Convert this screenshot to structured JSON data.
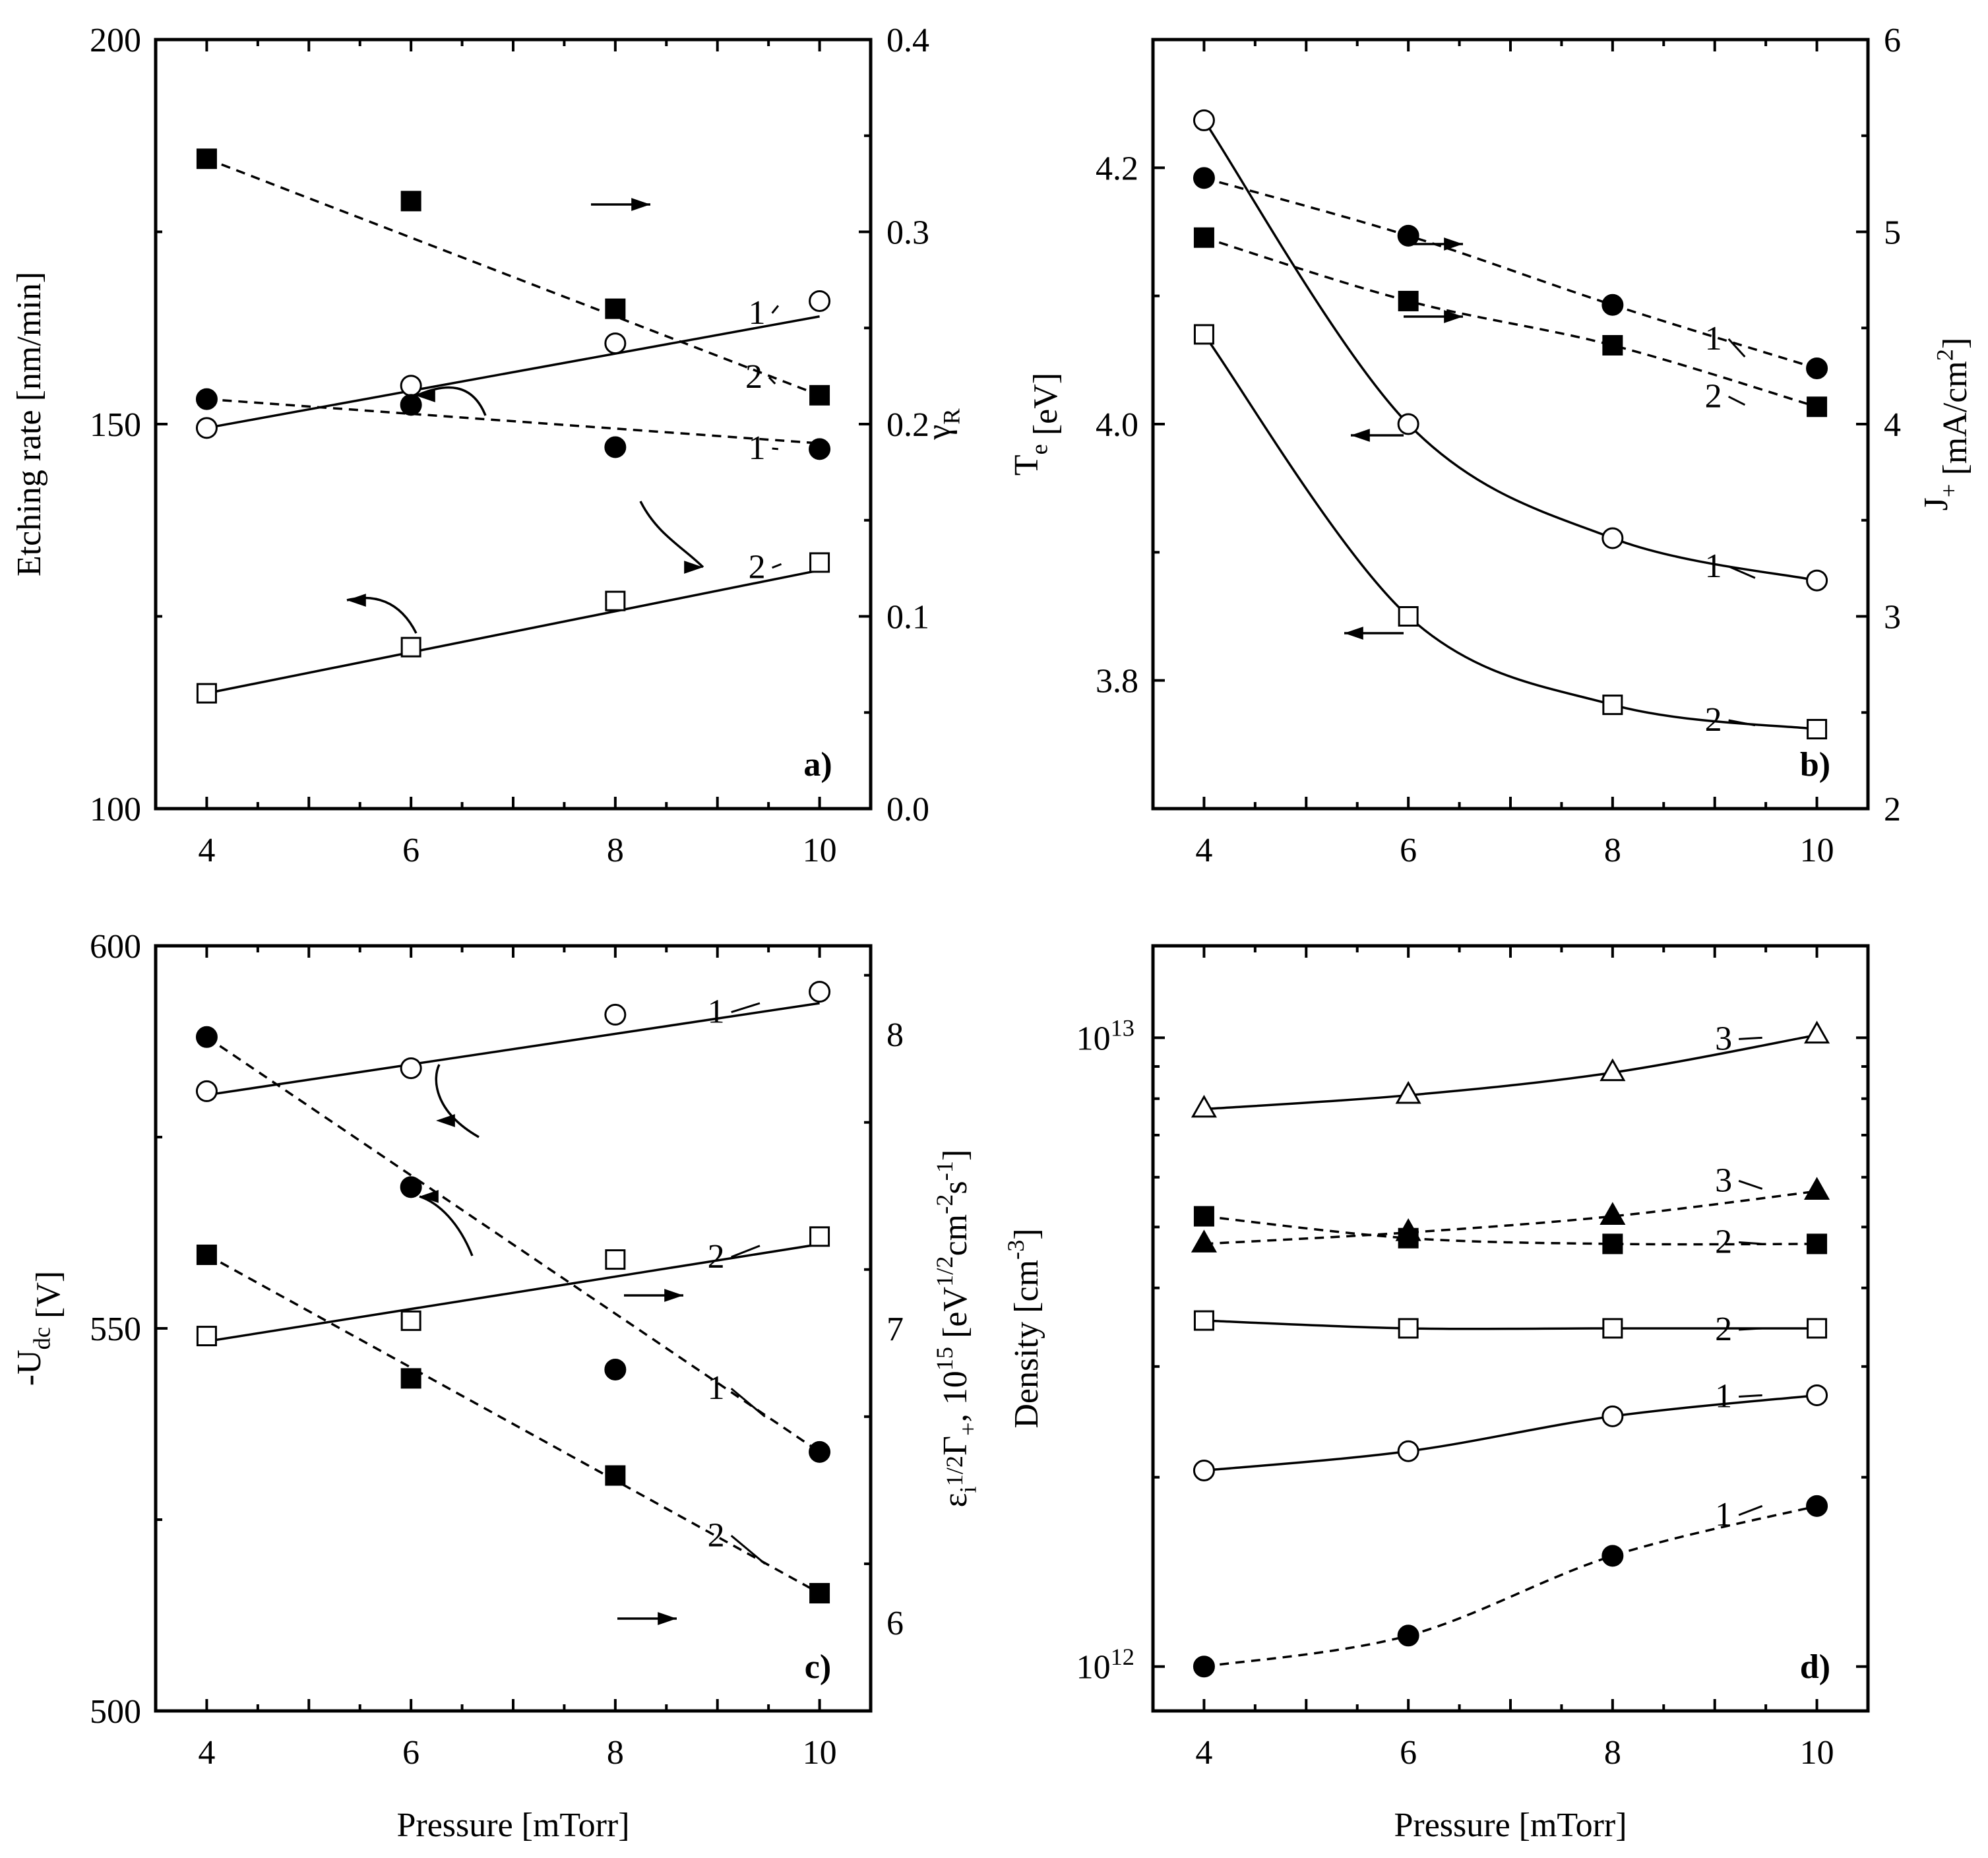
{
  "chart_data": [
    {
      "id": "a",
      "type": "scatter",
      "panel_label": "a)",
      "xlabel": "",
      "ylabel_left": "Etching rate [nm/min]",
      "ylabel_right": "γR",
      "xlim": [
        3.5,
        10.5
      ],
      "ylim_left": [
        100,
        200
      ],
      "ylim_right": [
        0.0,
        0.4
      ],
      "x_ticks": [
        4,
        6,
        8,
        10
      ],
      "x_tick_labels": [
        "4",
        "6",
        "8",
        "10"
      ],
      "left_ticks": [
        100,
        150,
        200
      ],
      "left_tick_labels": [
        "100",
        "150",
        "200"
      ],
      "right_ticks": [
        0.0,
        0.1,
        0.2,
        0.3,
        0.4
      ],
      "right_tick_labels": [
        "0.0",
        "0.1",
        "0.2",
        "0.3",
        "0.4"
      ],
      "series": [
        {
          "name": "open-circle-1",
          "axis": "left",
          "marker": "circle-open",
          "x": [
            4,
            6,
            8,
            10
          ],
          "y": [
            149.5,
            155,
            160.5,
            166
          ],
          "line": "solid",
          "fit": [
            [
              4,
              149.5
            ],
            [
              10,
              164
            ]
          ],
          "label": "1"
        },
        {
          "name": "open-square-2",
          "axis": "left",
          "marker": "square-open",
          "x": [
            4,
            6,
            8,
            10
          ],
          "y": [
            115,
            121,
            127,
            132
          ],
          "line": "solid",
          "fit": [
            [
              4,
              115
            ],
            [
              10,
              131
            ]
          ],
          "label": "2"
        },
        {
          "name": "filled-circle-1",
          "axis": "right",
          "marker": "circle-filled",
          "x": [
            4,
            6,
            8,
            10
          ],
          "y": [
            0.213,
            0.21,
            0.188,
            0.187
          ],
          "line": "dashed",
          "fit": [
            [
              4,
              0.213
            ],
            [
              10,
              0.19
            ]
          ],
          "label": "1"
        },
        {
          "name": "filled-square-2",
          "axis": "right",
          "marker": "square-filled",
          "x": [
            4,
            6,
            8,
            10
          ],
          "y": [
            0.338,
            0.316,
            0.26,
            0.215
          ],
          "line": "dashed",
          "fit": [
            [
              4,
              0.338
            ],
            [
              10,
              0.215
            ]
          ],
          "label": "2"
        }
      ]
    },
    {
      "id": "b",
      "type": "scatter",
      "panel_label": "b)",
      "xlabel": "",
      "ylabel_left": "Te [eV]",
      "ylabel_right": "J+ [mA/cm2]",
      "xlim": [
        3.5,
        10.5
      ],
      "ylim_left": [
        3.7,
        4.3
      ],
      "ylim_right": [
        2,
        6
      ],
      "x_ticks": [
        4,
        6,
        8,
        10
      ],
      "x_tick_labels": [
        "4",
        "6",
        "8",
        "10"
      ],
      "left_ticks": [
        3.8,
        4.0,
        4.2
      ],
      "left_tick_labels": [
        "3.8",
        "4.0",
        "4.2"
      ],
      "right_ticks": [
        2,
        3,
        4,
        5,
        6
      ],
      "right_tick_labels": [
        "2",
        "3",
        "4",
        "5",
        "6"
      ],
      "series": [
        {
          "name": "open-circle-1",
          "axis": "left",
          "marker": "circle-open",
          "x": [
            4,
            6,
            8,
            10
          ],
          "y": [
            4.237,
            4.0,
            3.911,
            3.878
          ],
          "line": "solid-curve",
          "label": "1"
        },
        {
          "name": "open-square-2",
          "axis": "left",
          "marker": "square-open",
          "x": [
            4,
            6,
            8,
            10
          ],
          "y": [
            4.07,
            3.85,
            3.781,
            3.762
          ],
          "line": "solid-curve",
          "label": "2"
        },
        {
          "name": "filled-circle-1",
          "axis": "right",
          "marker": "circle-filled",
          "x": [
            4,
            6,
            8,
            10
          ],
          "y": [
            5.28,
            4.98,
            4.62,
            4.29
          ],
          "line": "dashed",
          "label": "1"
        },
        {
          "name": "filled-square-2",
          "axis": "right",
          "marker": "square-filled",
          "x": [
            4,
            6,
            8,
            10
          ],
          "y": [
            4.97,
            4.64,
            4.41,
            4.09
          ],
          "line": "dashed",
          "label": "2"
        }
      ]
    },
    {
      "id": "c",
      "type": "scatter",
      "panel_label": "c)",
      "xlabel": "Pressure [mTorr]",
      "ylabel_left": "-Udc [V]",
      "ylabel_right": "εi1/2Γ+, 1015 [eV1/2cm-2s-1]",
      "xlim": [
        3.5,
        10.5
      ],
      "ylim_left": [
        500,
        600
      ],
      "ylim_right": [
        5.7,
        8.3
      ],
      "x_ticks": [
        4,
        6,
        8,
        10
      ],
      "x_tick_labels": [
        "4",
        "6",
        "8",
        "10"
      ],
      "left_ticks": [
        500,
        550,
        600
      ],
      "left_tick_labels": [
        "500",
        "550",
        "600"
      ],
      "right_ticks": [
        6,
        7,
        8
      ],
      "right_tick_labels": [
        "6",
        "7",
        "8"
      ],
      "series": [
        {
          "name": "open-circle-1",
          "axis": "left",
          "marker": "circle-open",
          "x": [
            4,
            6,
            8,
            10
          ],
          "y": [
            581,
            584,
            591,
            594
          ],
          "line": "solid",
          "fit": [
            [
              4,
              580.5
            ],
            [
              10,
              592.5
            ]
          ],
          "label": "1"
        },
        {
          "name": "open-square-2",
          "axis": "left",
          "marker": "square-open",
          "x": [
            4,
            6,
            8,
            10
          ],
          "y": [
            549,
            551,
            559,
            562
          ],
          "line": "solid",
          "fit": [
            [
              4,
              548.3
            ],
            [
              10,
              561
            ]
          ],
          "label": "2"
        },
        {
          "name": "filled-circle-1",
          "axis": "right",
          "marker": "circle-filled",
          "x": [
            4,
            6,
            8,
            10
          ],
          "y": [
            7.99,
            7.48,
            6.86,
            6.58
          ],
          "line": "dashed",
          "fit": [
            [
              4,
              7.99
            ],
            [
              10,
              6.58
            ]
          ],
          "label": "1"
        },
        {
          "name": "filled-square-2",
          "axis": "right",
          "marker": "square-filled",
          "x": [
            4,
            6,
            8,
            10
          ],
          "y": [
            7.25,
            6.83,
            6.5,
            6.1
          ],
          "line": "dashed",
          "fit": [
            [
              4,
              7.25
            ],
            [
              10,
              6.1
            ]
          ],
          "label": "2"
        }
      ]
    },
    {
      "id": "d",
      "type": "scatter",
      "panel_label": "d)",
      "xlabel": "Pressure [mTorr]",
      "ylabel_left": "Density [cm-3]",
      "scale": "log",
      "xlim": [
        3.5,
        10.5
      ],
      "ylim_left": [
        850000000000.0,
        14000000000000.0
      ],
      "x_ticks": [
        4,
        6,
        8,
        10
      ],
      "x_tick_labels": [
        "4",
        "6",
        "8",
        "10"
      ],
      "left_ticks_major": [
        1000000000000.0,
        10000000000000.0
      ],
      "left_tick_labels": [
        "1012",
        "1013"
      ],
      "left_ticks_minor": [
        2000000000000.0,
        3000000000000.0,
        4000000000000.0,
        5000000000000.0,
        6000000000000.0,
        7000000000000.0,
        8000000000000.0,
        9000000000000.0
      ],
      "series": [
        {
          "name": "open-triangle-3",
          "marker": "triangle-open",
          "x": [
            4,
            6,
            8,
            10
          ],
          "y": [
            7700000000000.0,
            8100000000000.0,
            8800000000000.0,
            10100000000000.0
          ],
          "line": "solid-curve",
          "label": "3"
        },
        {
          "name": "filled-triangle-3",
          "marker": "triangle-filled",
          "x": [
            4,
            6,
            8,
            10
          ],
          "y": [
            4700000000000.0,
            4900000000000.0,
            5200000000000.0,
            5700000000000.0
          ],
          "line": "dashed-curve",
          "label": "3"
        },
        {
          "name": "filled-square-2",
          "marker": "square-filled",
          "x": [
            4,
            6,
            8,
            10
          ],
          "y": [
            5200000000000.0,
            4800000000000.0,
            4700000000000.0,
            4700000000000.0
          ],
          "line": "dashed-curve",
          "label": "2"
        },
        {
          "name": "open-square-2",
          "marker": "square-open",
          "x": [
            4,
            6,
            8,
            10
          ],
          "y": [
            3550000000000.0,
            3450000000000.0,
            3450000000000.0,
            3450000000000.0
          ],
          "line": "solid-curve",
          "label": "2"
        },
        {
          "name": "open-circle-1",
          "marker": "circle-open",
          "x": [
            4,
            6,
            8,
            10
          ],
          "y": [
            2050000000000.0,
            2200000000000.0,
            2500000000000.0,
            2700000000000.0
          ],
          "line": "solid-curve",
          "label": "1"
        },
        {
          "name": "filled-circle-1",
          "marker": "circle-filled",
          "x": [
            4,
            6,
            8,
            10
          ],
          "y": [
            1000000000000.0,
            1120000000000.0,
            1500000000000.0,
            1800000000000.0
          ],
          "line": "dashed-curve",
          "label": "1"
        }
      ]
    }
  ]
}
